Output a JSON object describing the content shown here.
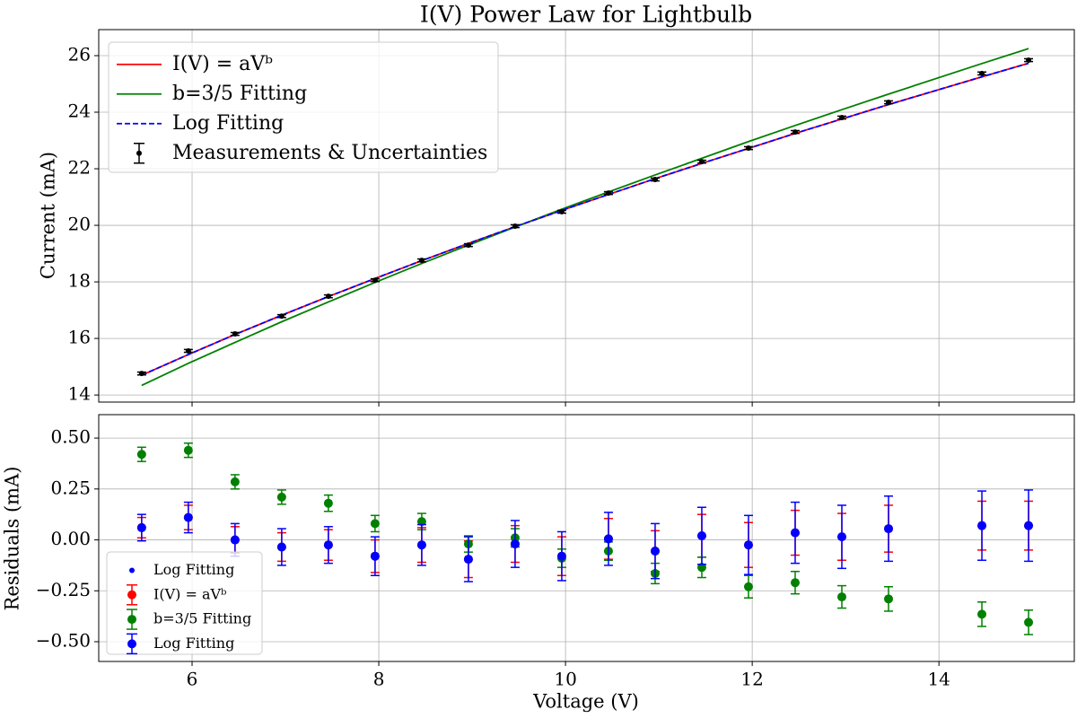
{
  "chart_data": [
    {
      "type": "line",
      "title": "I(V) Power Law for Lightbulb",
      "ylabel": "Current (mA)",
      "x": [
        5.46,
        5.96,
        6.46,
        6.96,
        7.46,
        7.96,
        8.46,
        8.96,
        9.46,
        9.96,
        10.46,
        10.96,
        11.46,
        11.96,
        12.46,
        12.96,
        13.46,
        14.46,
        14.96
      ],
      "xlim": [
        5.0,
        15.45
      ],
      "xticks": [
        6,
        8,
        10,
        12,
        14
      ],
      "show_xtick_labels": false,
      "ylim": [
        13.75,
        26.92
      ],
      "yticks": [
        14,
        16,
        18,
        20,
        22,
        24,
        26
      ],
      "grid": true,
      "legend": "upper left",
      "series": [
        {
          "name": "I(V) = aVᵇ",
          "type": "line",
          "color": "#ff0000",
          "linestyle": "solid",
          "values": [
            14.7,
            15.43,
            16.14,
            16.82,
            17.48,
            18.12,
            18.75,
            19.36,
            19.95,
            20.53,
            21.09,
            21.65,
            22.19,
            22.72,
            23.25,
            23.76,
            24.27,
            25.25,
            25.73
          ]
        },
        {
          "name": "b=3/5 Fitting",
          "type": "line",
          "color": "#008000",
          "linestyle": "solid",
          "values": [
            14.34,
            15.12,
            15.86,
            16.59,
            17.29,
            17.98,
            18.65,
            19.3,
            19.94,
            20.57,
            21.18,
            21.78,
            22.37,
            22.96,
            23.53,
            24.09,
            24.64,
            25.72,
            26.25
          ]
        },
        {
          "name": "Log Fitting",
          "type": "line",
          "color": "#0000ff",
          "linestyle": "dashed",
          "values": [
            14.7,
            15.43,
            16.14,
            16.82,
            17.48,
            18.12,
            18.75,
            19.36,
            19.95,
            20.53,
            21.09,
            21.65,
            22.19,
            22.72,
            23.25,
            23.76,
            24.27,
            25.25,
            25.73
          ]
        },
        {
          "name": "Measurements & Uncertainties",
          "type": "errorbar",
          "color": "#000000",
          "marker_size": 3,
          "values": [
            14.76,
            15.56,
            16.16,
            16.79,
            17.49,
            18.06,
            18.76,
            19.3,
            19.97,
            20.48,
            21.14,
            21.62,
            22.25,
            22.73,
            23.3,
            23.81,
            24.35,
            25.37,
            25.84
          ],
          "errors": [
            0.05,
            0.05,
            0.05,
            0.05,
            0.05,
            0.05,
            0.05,
            0.05,
            0.05,
            0.05,
            0.05,
            0.05,
            0.05,
            0.05,
            0.05,
            0.05,
            0.05,
            0.05,
            0.05
          ]
        }
      ]
    },
    {
      "type": "scatter",
      "xlabel": "Voltage (V)",
      "ylabel": "Residuals (mA)",
      "x": [
        5.46,
        5.96,
        6.46,
        6.96,
        7.46,
        7.96,
        8.46,
        8.96,
        9.46,
        9.96,
        10.46,
        10.96,
        11.46,
        11.96,
        12.46,
        12.96,
        13.46,
        14.46,
        14.96
      ],
      "xlim": [
        5.0,
        15.45
      ],
      "xticks": [
        6,
        8,
        10,
        12,
        14
      ],
      "show_xtick_labels": true,
      "ylim": [
        -0.597,
        0.615
      ],
      "yticks": [
        {
          "value": 0.5,
          "label": "0.50"
        },
        {
          "value": 0.25,
          "label": "0.25"
        },
        {
          "value": 0,
          "label": "0.00"
        },
        {
          "value": -0.25,
          "label": "−0.25"
        },
        {
          "value": -0.5,
          "label": "−0.50"
        }
      ],
      "grid": true,
      "legend": "lower left",
      "series": [
        {
          "name": "Log Fitting",
          "type": "scatter",
          "color": "#0000ff",
          "marker_size": 3,
          "values": [
            0.06,
            0.11,
            0.0,
            -0.035,
            -0.025,
            -0.08,
            -0.025,
            -0.095,
            -0.02,
            -0.08,
            0.005,
            -0.055,
            0.02,
            -0.025,
            0.035,
            0.015,
            0.055,
            0.07,
            0.07
          ]
        },
        {
          "name": "I(V) = aVᵇ",
          "type": "errorbar",
          "color": "#ff0000",
          "marker_size": 5,
          "values": [
            0.06,
            0.11,
            0.0,
            -0.035,
            -0.025,
            -0.08,
            -0.025,
            -0.095,
            -0.02,
            -0.08,
            0.005,
            -0.055,
            0.02,
            -0.025,
            0.035,
            0.015,
            0.055,
            0.07,
            0.07
          ],
          "errors": [
            0.05,
            0.06,
            0.065,
            0.07,
            0.075,
            0.08,
            0.085,
            0.09,
            0.09,
            0.095,
            0.1,
            0.1,
            0.105,
            0.11,
            0.11,
            0.115,
            0.115,
            0.12,
            0.12
          ]
        },
        {
          "name": "b=3/5 Fitting",
          "type": "errorbar",
          "color": "#008000",
          "marker_size": 5,
          "values": [
            0.42,
            0.44,
            0.285,
            0.21,
            0.18,
            0.08,
            0.09,
            -0.02,
            0.01,
            -0.09,
            -0.055,
            -0.165,
            -0.135,
            -0.23,
            -0.21,
            -0.28,
            -0.29,
            -0.365,
            -0.405
          ],
          "errors": [
            0.035,
            0.035,
            0.035,
            0.035,
            0.04,
            0.04,
            0.04,
            0.04,
            0.045,
            0.045,
            0.045,
            0.05,
            0.05,
            0.055,
            0.055,
            0.055,
            0.06,
            0.06,
            0.06
          ]
        },
        {
          "name": "Log Fitting",
          "type": "errorbar",
          "color": "#0000ff",
          "marker_size": 5,
          "values": [
            0.06,
            0.11,
            0.0,
            -0.035,
            -0.025,
            -0.08,
            -0.025,
            -0.095,
            -0.02,
            -0.08,
            0.005,
            -0.055,
            0.02,
            -0.025,
            0.035,
            0.015,
            0.055,
            0.07,
            0.07
          ],
          "errors": [
            0.065,
            0.075,
            0.08,
            0.09,
            0.09,
            0.095,
            0.1,
            0.11,
            0.115,
            0.12,
            0.13,
            0.135,
            0.14,
            0.145,
            0.15,
            0.155,
            0.16,
            0.17,
            0.175
          ]
        }
      ]
    }
  ]
}
